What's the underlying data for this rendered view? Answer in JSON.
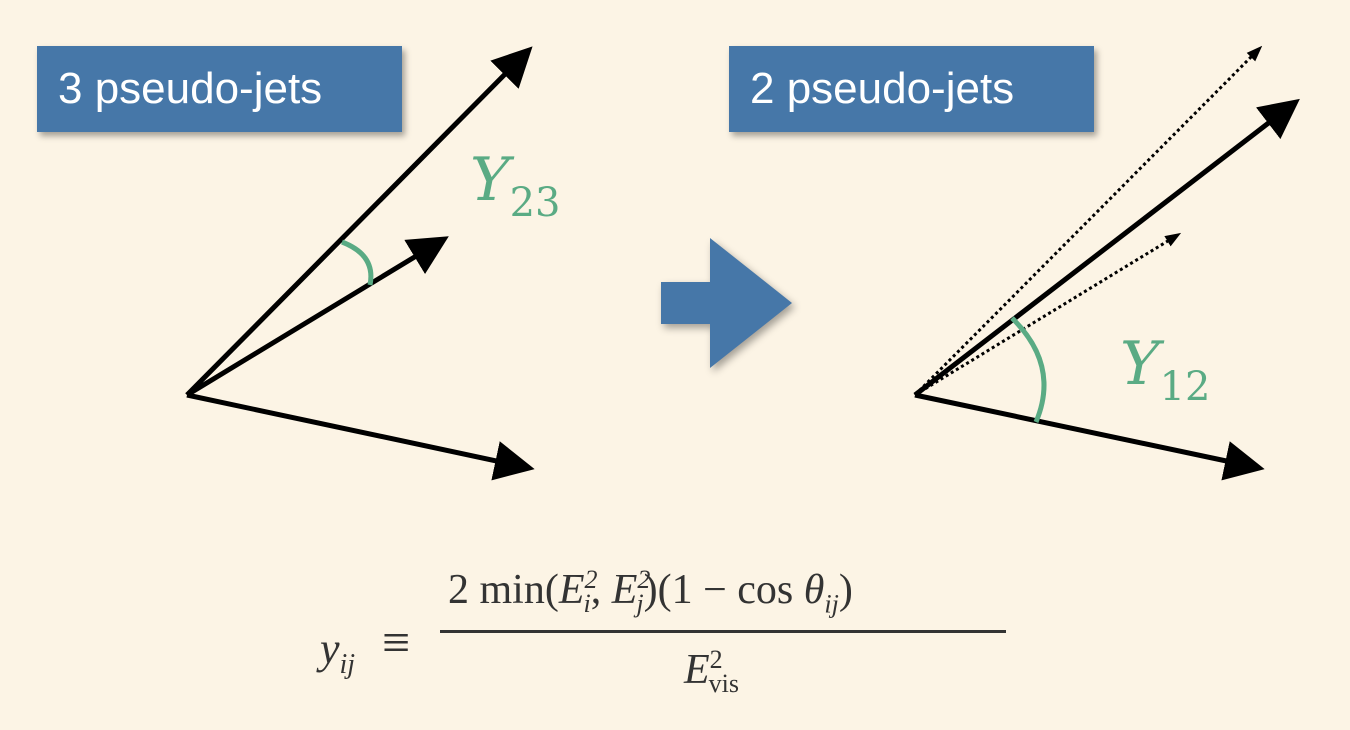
{
  "left_panel": {
    "label": "3 pseudo-jets",
    "angle_symbol": "Y",
    "angle_subscript": "23"
  },
  "right_panel": {
    "label": "2 pseudo-jets",
    "angle_symbol": "Y",
    "angle_subscript": "12"
  },
  "formula": {
    "lhs_var": "y",
    "lhs_sub": "ij",
    "relation": "≡",
    "numerator": {
      "prefix": "2 min(",
      "e1": "E",
      "e1_sub": "i",
      "e1_sup": "2",
      "sep": ", ",
      "e2": "E",
      "e2_sub": "j",
      "e2_sup": "2",
      "middle": ")(1 − cos ",
      "theta": "θ",
      "theta_sub": "ij",
      "suffix": ")"
    },
    "denominator": {
      "var": "E",
      "sub": "vis",
      "sup": "2"
    }
  },
  "colors": {
    "label_box": "#4677a8",
    "angle": "#5aab84",
    "arrow": "#000000",
    "background": "#fcf4e5",
    "transition_arrow": "#4677a8"
  }
}
